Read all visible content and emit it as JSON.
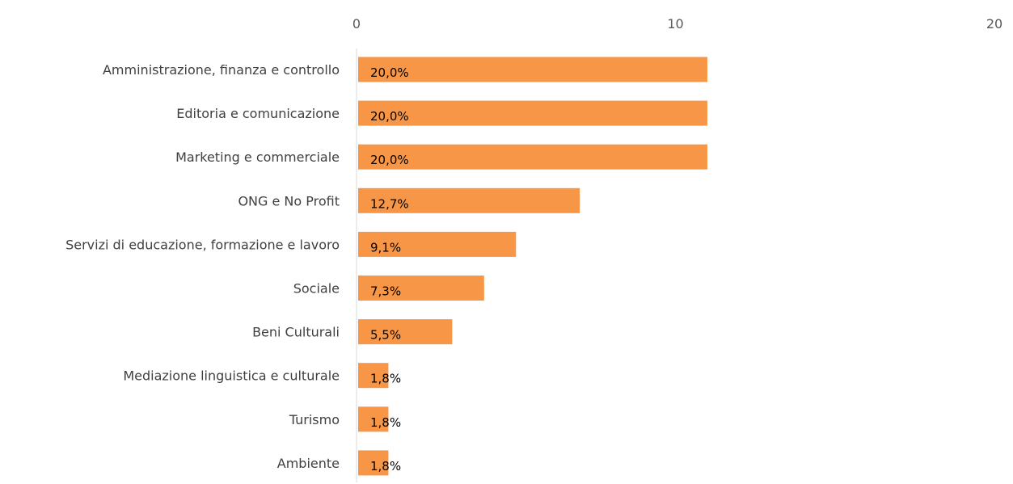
{
  "chart_data": {
    "type": "bar",
    "orientation": "horizontal",
    "categories": [
      "Amministrazione, finanza e controllo",
      "Editoria e comunicazione",
      "Marketing e commerciale",
      "ONG e No Profit",
      "Servizi di educazione, formazione e lavoro",
      "Sociale",
      "Beni Culturali",
      "Mediazione linguistica e culturale",
      "Turismo",
      "Ambiente"
    ],
    "values": [
      11,
      11,
      11,
      7,
      5,
      4,
      3,
      1,
      1,
      1
    ],
    "data_labels": [
      "20,0%",
      "20,0%",
      "20,0%",
      "12,7%",
      "9,1%",
      "7,3%",
      "5,5%",
      "1,8%",
      "1,8%",
      "1,8%"
    ],
    "x_axis": {
      "position": "top",
      "ticks": [
        "0",
        "10",
        "20"
      ],
      "range": [
        0,
        20
      ]
    },
    "grid": false,
    "legend": "none",
    "bar_color": "#F79646",
    "axis_line_color": "#D9D9D9"
  }
}
